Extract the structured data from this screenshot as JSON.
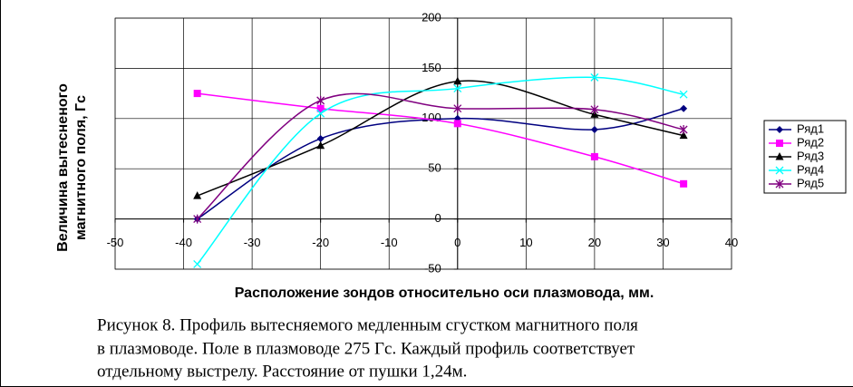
{
  "chart_data": {
    "type": "line",
    "x": [
      -38,
      -20,
      0,
      20,
      33
    ],
    "series": [
      {
        "name": "Ряд1",
        "color": "#000080",
        "marker": "diamond",
        "values": [
          0,
          80,
          100,
          89,
          110
        ]
      },
      {
        "name": "Ряд2",
        "color": "#ff00ff",
        "marker": "square",
        "values": [
          125,
          110,
          95,
          62,
          35
        ]
      },
      {
        "name": "Ряд3",
        "color": "#000000",
        "marker": "triangle",
        "values": [
          23,
          73,
          137,
          104,
          83
        ]
      },
      {
        "name": "Ряд4",
        "color": "#00ffff",
        "marker": "x",
        "values": [
          -45,
          105,
          130,
          141,
          124
        ]
      },
      {
        "name": "Ряд5",
        "color": "#800080",
        "marker": "star",
        "values": [
          0,
          118,
          110,
          109,
          89
        ]
      }
    ],
    "xlim": [
      -50,
      40
    ],
    "ylim": [
      -50,
      200
    ],
    "xticks": [
      -50,
      -40,
      -30,
      -20,
      -10,
      0,
      10,
      20,
      30,
      40
    ],
    "yticks": [
      -50,
      0,
      50,
      100,
      150,
      200
    ],
    "grid": true,
    "smooth": true,
    "legend": "right",
    "xlabel": "Расположение зондов относительно оси  плазмовода, мм.",
    "ylabel": [
      "Величина вытесненого",
      "магнитного  поля, Гс"
    ]
  },
  "caption": [
    "Рисунок 8. Профиль вытесняемого медленным сгустком магнитного поля",
    "в плазмоводе. Поле в плазмоводе 275 Гс. Каждый профиль соответствует",
    "отдельному выстрелу. Расстояние от пушки 1,24м."
  ]
}
